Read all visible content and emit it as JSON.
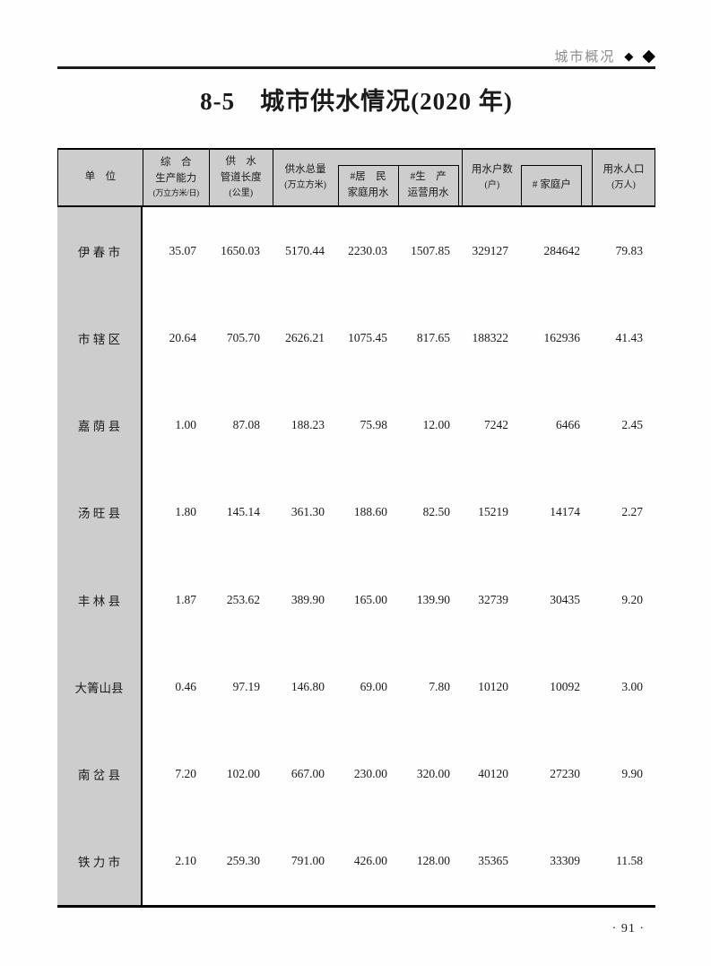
{
  "running_head": {
    "section": "城市概况",
    "diamond_small": "◆",
    "diamond_large": "◆"
  },
  "title": "8-5　城市供水情况(2020 年)",
  "table": {
    "header": {
      "unit": "单　位",
      "capacity": [
        "综　合",
        "生产能力",
        "(万立方米/日)"
      ],
      "pipeline": [
        "供　水",
        "管道长度",
        "(公里)"
      ],
      "supply_total": [
        "供水总量",
        "(万立方米)"
      ],
      "residential": [
        "#居　民",
        "家庭用水"
      ],
      "production": [
        "#生　产",
        "运营用水"
      ],
      "households": [
        "用水户数",
        "(户)"
      ],
      "family_households": "# 家庭户",
      "population": [
        "用水人口",
        "(万人)"
      ]
    },
    "rows": [
      {
        "unit": "伊 春 市",
        "values": [
          "35.07",
          "1650.03",
          "5170.44",
          "2230.03",
          "1507.85",
          "329127",
          "284642",
          "79.83"
        ]
      },
      {
        "unit": "市 辖 区",
        "values": [
          "20.64",
          "705.70",
          "2626.21",
          "1075.45",
          "817.65",
          "188322",
          "162936",
          "41.43"
        ]
      },
      {
        "unit": "嘉 荫 县",
        "values": [
          "1.00",
          "87.08",
          "188.23",
          "75.98",
          "12.00",
          "7242",
          "6466",
          "2.45"
        ]
      },
      {
        "unit": "汤 旺 县",
        "values": [
          "1.80",
          "145.14",
          "361.30",
          "188.60",
          "82.50",
          "15219",
          "14174",
          "2.27"
        ]
      },
      {
        "unit": "丰 林 县",
        "values": [
          "1.87",
          "253.62",
          "389.90",
          "165.00",
          "139.90",
          "32739",
          "30435",
          "9.20"
        ]
      },
      {
        "unit": "大箐山县",
        "values": [
          "0.46",
          "97.19",
          "146.80",
          "69.00",
          "7.80",
          "10120",
          "10092",
          "3.00"
        ]
      },
      {
        "unit": "南 岔 县",
        "values": [
          "7.20",
          "102.00",
          "667.00",
          "230.00",
          "320.00",
          "40120",
          "27230",
          "9.90"
        ]
      },
      {
        "unit": "铁 力 市",
        "values": [
          "2.10",
          "259.30",
          "791.00",
          "426.00",
          "128.00",
          "35365",
          "33309",
          "11.58"
        ]
      }
    ]
  },
  "page_number": "· 91 ·",
  "colors": {
    "header_fill": "#cdcdcd",
    "rule": "#1c1c1c",
    "muted_text": "#8c8c8c"
  }
}
